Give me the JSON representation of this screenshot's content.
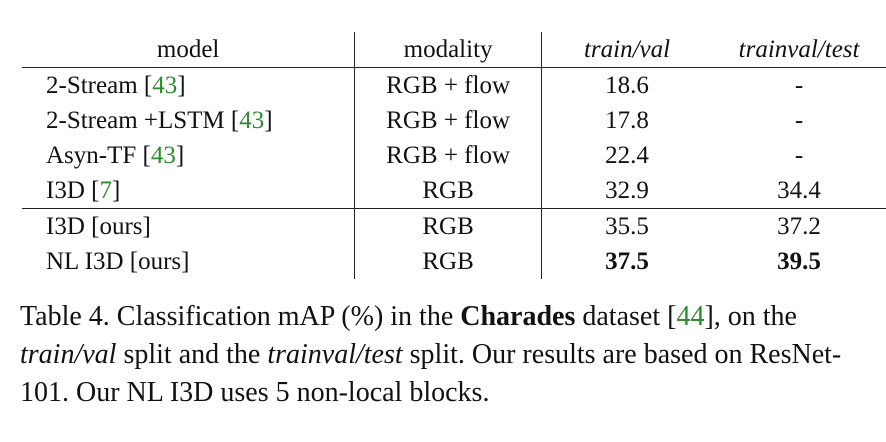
{
  "table": {
    "headers": {
      "model": "model",
      "modality": "modality",
      "train_val": "train/val",
      "trainval_test": "trainval/test"
    },
    "rows": [
      {
        "model": "2-Stream ",
        "ref": "43",
        "modality": "RGB + flow",
        "train_val": "18.6",
        "trainval_test": "-"
      },
      {
        "model": "2-Stream +LSTM ",
        "ref": "43",
        "modality": "RGB + flow",
        "train_val": "17.8",
        "trainval_test": "-"
      },
      {
        "model": "Asyn-TF ",
        "ref": "43",
        "modality": "RGB + flow",
        "train_val": "22.4",
        "trainval_test": "-"
      },
      {
        "model": "I3D ",
        "ref": "7",
        "modality": "RGB",
        "train_val": "32.9",
        "trainval_test": "34.4"
      },
      {
        "model": "I3D [ours]",
        "modality": "RGB",
        "train_val": "35.5",
        "trainval_test": "37.2"
      },
      {
        "model": "NL I3D [ours]",
        "modality": "RGB",
        "train_val": "37.5",
        "trainval_test": "39.5"
      }
    ]
  },
  "caption": {
    "p1": "Table 4. Classification mAP (%) in the ",
    "b1": "Charades",
    "p2": " dataset [",
    "ref": "44",
    "p3": "], on the ",
    "i1": "train/val",
    "p4": " split and the ",
    "i2": "trainval/test",
    "p5": " split. Our results are based on ResNet-101. Our NL I3D uses 5 non-local blocks."
  },
  "colors": {
    "reference_link": "#2e8b2e"
  }
}
